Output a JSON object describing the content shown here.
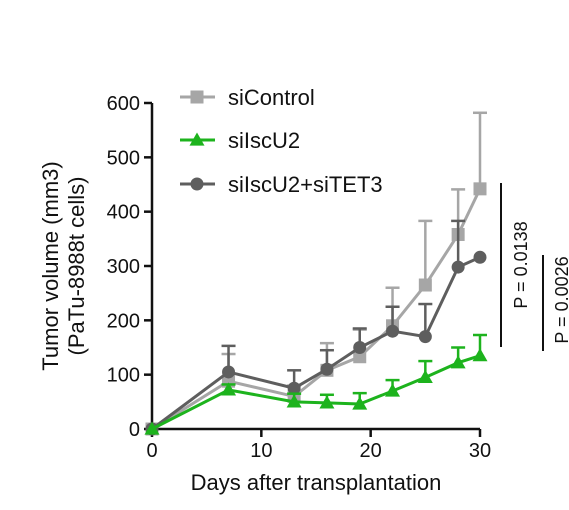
{
  "chart_data": {
    "type": "line",
    "xlabel": "Days after transplantation",
    "ylabel_lines": [
      "Tumor volume (mm3)",
      "(PaTu-8988t cells)"
    ],
    "xlim": [
      0,
      30
    ],
    "ylim": [
      0,
      600
    ],
    "xticks": [
      0,
      10,
      20,
      30
    ],
    "yticks": [
      0,
      100,
      200,
      300,
      400,
      500,
      600
    ],
    "grid": false,
    "legend_position": "top-left",
    "series": [
      {
        "name": "siControl",
        "color": "#a6a6a6",
        "marker": "square",
        "x": [
          0,
          7,
          13,
          16,
          19,
          22,
          25,
          28,
          30
        ],
        "values": [
          0,
          88,
          60,
          108,
          133,
          190,
          265,
          358,
          442
        ],
        "error": [
          0,
          50,
          20,
          50,
          50,
          70,
          118,
          83,
          140
        ]
      },
      {
        "name": "siIscU2",
        "color": "#1db31d",
        "marker": "triangle",
        "x": [
          0,
          7,
          13,
          16,
          19,
          22,
          25,
          28,
          30
        ],
        "values": [
          0,
          72,
          50,
          48,
          46,
          70,
          95,
          122,
          135
        ],
        "error": [
          0,
          10,
          15,
          15,
          20,
          20,
          30,
          28,
          38
        ]
      },
      {
        "name": "siIscU2+siTET3",
        "color": "#5e5e5e",
        "marker": "circle",
        "x": [
          0,
          7,
          13,
          16,
          19,
          22,
          25,
          28,
          30
        ],
        "values": [
          0,
          105,
          75,
          110,
          150,
          180,
          170,
          298,
          316
        ],
        "error": [
          0,
          48,
          33,
          35,
          35,
          45,
          60,
          85,
          0
        ]
      }
    ],
    "annotations": [
      "P = 0.0138",
      "P = 0.0026"
    ]
  }
}
